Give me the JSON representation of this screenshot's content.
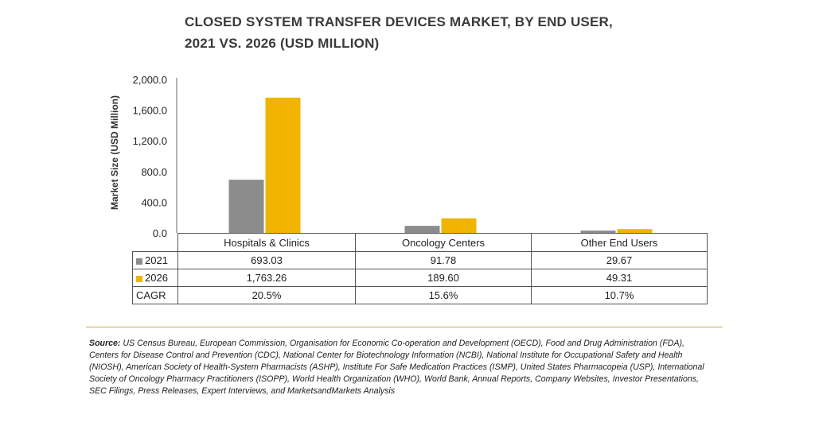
{
  "title_line1": "CLOSED SYSTEM TRANSFER DEVICES MARKET, BY END USER,",
  "title_line2": "2021 VS. 2026 (USD MILLION)",
  "colors": {
    "series_2021": "#8c8c8c",
    "series_2026": "#f0b400",
    "title": "#3a3a3a",
    "rule": "#c9a74a"
  },
  "chart_data": {
    "type": "bar",
    "title": "CLOSED SYSTEM TRANSFER DEVICES MARKET, BY END USER, 2021 VS. 2026 (USD MILLION)",
    "ylabel": "Market Size (USD Million)",
    "ylim": [
      0,
      2000
    ],
    "yticks": [
      "0.0",
      "400.0",
      "800.0",
      "1,200.0",
      "1,600.0",
      "2,000.0"
    ],
    "ytick_values": [
      0,
      400,
      800,
      1200,
      1600,
      2000
    ],
    "categories": [
      "Hospitals & Clinics",
      "Oncology Centers",
      "Other End Users"
    ],
    "series": [
      {
        "name": "2021",
        "values": [
          693.03,
          91.78,
          29.67
        ],
        "labels": [
          "693.03",
          "91.78",
          "29.67"
        ]
      },
      {
        "name": "2026",
        "values": [
          1763.26,
          189.6,
          49.31
        ],
        "labels": [
          "1,763.26",
          "189.60",
          "49.31"
        ]
      }
    ],
    "cagr": {
      "name": "CAGR",
      "values": [
        "20.5%",
        "15.6%",
        "10.7%"
      ]
    },
    "legend": "in data table rows",
    "grid": false
  },
  "source_label": "Source:",
  "source_text": "US Census Bureau, European Commission, Organisation for Economic Co-operation and Development (OECD), Food and Drug Administration (FDA), Centers for Disease Control and Prevention (CDC), National Center for Biotechnology Information (NCBI), National Institute for Occupational Safety and Health (NIOSH), American Society of Health-System Pharmacists (ASHP), Institute For Safe Medication Practices (ISMP), United States Pharmacopeia (USP), International Society of Oncology Pharmacy Practitioners (ISOPP), World Health Organization (WHO), World Bank, Annual Reports, Company Websites, Investor Presentations, SEC Filings, Press Releases, Expert Interviews, and MarketsandMarkets Analysis"
}
